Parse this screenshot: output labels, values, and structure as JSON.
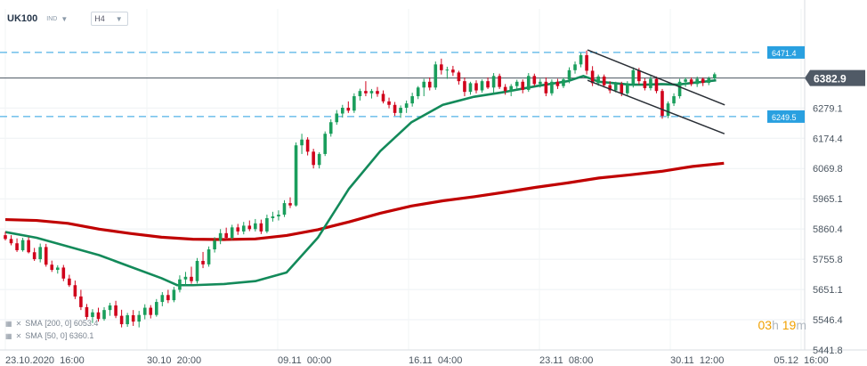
{
  "header": {
    "symbol": "UK100",
    "symbol_type": "IND",
    "timeframe": "H4"
  },
  "indicators": [
    {
      "name": "SMA",
      "params": "[200,  0]",
      "value": "6053.4"
    },
    {
      "name": "SMA",
      "params": "[50,  0]",
      "value": "6360.1"
    }
  ],
  "countdown": {
    "hours": "03",
    "h": "h",
    "minutes": "19",
    "m": "m"
  },
  "colors": {
    "up": "#1a9e5c",
    "down": "#d0021b",
    "sma200": "#c00000",
    "sma50": "#138a5a",
    "level": "#29a0e0",
    "current": "#4a5560",
    "channel": "#2a2f36"
  },
  "chart_data": {
    "type": "candlestick",
    "instrument": "UK100",
    "timeframe": "H4",
    "ylim": [
      5420,
      6510
    ],
    "y_ticks": [
      5441.8,
      5546.4,
      5651.1,
      5755.8,
      5860.4,
      5965.1,
      6069.8,
      6174.4,
      6279.1
    ],
    "x_ticks": [
      "23.10.2020  16:00",
      "30.10  20:00",
      "09.11  00:00",
      "16.11  04:00",
      "23.11  08:00",
      "30.11  12:00",
      "05.12  16:00"
    ],
    "current_price": {
      "value": 6382.9,
      "label": "6382.9"
    },
    "levels": [
      {
        "value": 6471.4,
        "label": "6471.4"
      },
      {
        "value": 6249.5,
        "label": "6249.5"
      }
    ],
    "channel": {
      "upper": [
        {
          "x": 37.27,
          "y": 6480
        },
        {
          "x": 46.05,
          "y": 6290
        }
      ],
      "lower": [
        {
          "x": 37.27,
          "y": 6375
        },
        {
          "x": 46.03,
          "y": 6190
        }
      ]
    },
    "sma200": [
      [
        0,
        5893
      ],
      [
        2,
        5890
      ],
      [
        4,
        5880
      ],
      [
        6,
        5860
      ],
      [
        8,
        5845
      ],
      [
        10,
        5832
      ],
      [
        12,
        5825
      ],
      [
        14,
        5824
      ],
      [
        16,
        5826
      ],
      [
        18,
        5838
      ],
      [
        20,
        5858
      ],
      [
        22,
        5885
      ],
      [
        24,
        5915
      ],
      [
        26,
        5940
      ],
      [
        28,
        5958
      ],
      [
        30,
        5972
      ],
      [
        32,
        5988
      ],
      [
        34,
        6005
      ],
      [
        36,
        6020
      ],
      [
        38,
        6037
      ],
      [
        40,
        6048
      ],
      [
        42,
        6060
      ],
      [
        44,
        6077
      ],
      [
        46,
        6088
      ]
    ],
    "sma50": [
      [
        0,
        5850
      ],
      [
        2,
        5830
      ],
      [
        4,
        5800
      ],
      [
        6,
        5770
      ],
      [
        8,
        5730
      ],
      [
        10,
        5690
      ],
      [
        11,
        5666
      ],
      [
        12,
        5666
      ],
      [
        14,
        5670
      ],
      [
        16,
        5680
      ],
      [
        18,
        5710
      ],
      [
        20,
        5830
      ],
      [
        22,
        6000
      ],
      [
        24,
        6130
      ],
      [
        26,
        6230
      ],
      [
        28,
        6290
      ],
      [
        30,
        6318
      ],
      [
        32,
        6335
      ],
      [
        34,
        6355
      ],
      [
        36,
        6372
      ],
      [
        37,
        6390
      ],
      [
        38,
        6370
      ],
      [
        39,
        6365
      ],
      [
        40,
        6360
      ],
      [
        41,
        6360
      ],
      [
        42,
        6362
      ],
      [
        43,
        6360
      ],
      [
        44,
        6366
      ],
      [
        45,
        6372
      ],
      [
        45.5,
        6375
      ]
    ],
    "candles_ohlc": [
      [
        5839,
        5851,
        5821,
        5826
      ],
      [
        5826,
        5839,
        5804,
        5811
      ],
      [
        5811,
        5828,
        5781,
        5787
      ],
      [
        5787,
        5830,
        5782,
        5822
      ],
      [
        5822,
        5832,
        5776,
        5780
      ],
      [
        5780,
        5795,
        5750,
        5756
      ],
      [
        5756,
        5810,
        5745,
        5798
      ],
      [
        5798,
        5809,
        5730,
        5737
      ],
      [
        5737,
        5751,
        5712,
        5719
      ],
      [
        5719,
        5735,
        5706,
        5727
      ],
      [
        5727,
        5736,
        5680,
        5689
      ],
      [
        5689,
        5702,
        5660,
        5666
      ],
      [
        5666,
        5682,
        5618,
        5627
      ],
      [
        5627,
        5650,
        5580,
        5590
      ],
      [
        5590,
        5601,
        5547,
        5556
      ],
      [
        5556,
        5583,
        5535,
        5572
      ],
      [
        5572,
        5588,
        5540,
        5549
      ],
      [
        5549,
        5590,
        5543,
        5580
      ],
      [
        5580,
        5605,
        5560,
        5596
      ],
      [
        5596,
        5612,
        5552,
        5560
      ],
      [
        5560,
        5581,
        5520,
        5531
      ],
      [
        5531,
        5570,
        5522,
        5562
      ],
      [
        5562,
        5580,
        5525,
        5540
      ],
      [
        5540,
        5577,
        5520,
        5563
      ],
      [
        5563,
        5600,
        5548,
        5588
      ],
      [
        5588,
        5597,
        5551,
        5563
      ],
      [
        5563,
        5618,
        5557,
        5608
      ],
      [
        5608,
        5642,
        5593,
        5632
      ],
      [
        5632,
        5650,
        5604,
        5614
      ],
      [
        5614,
        5660,
        5607,
        5650
      ],
      [
        5650,
        5700,
        5641,
        5686
      ],
      [
        5686,
        5712,
        5665,
        5695
      ],
      [
        5695,
        5730,
        5671,
        5680
      ],
      [
        5680,
        5760,
        5672,
        5750
      ],
      [
        5750,
        5781,
        5725,
        5738
      ],
      [
        5738,
        5800,
        5730,
        5790
      ],
      [
        5790,
        5832,
        5779,
        5820
      ],
      [
        5820,
        5860,
        5808,
        5846
      ],
      [
        5846,
        5865,
        5822,
        5830
      ],
      [
        5830,
        5875,
        5822,
        5866
      ],
      [
        5866,
        5878,
        5840,
        5852
      ],
      [
        5852,
        5885,
        5842,
        5872
      ],
      [
        5872,
        5890,
        5853,
        5860
      ],
      [
        5860,
        5895,
        5852,
        5880
      ],
      [
        5880,
        5893,
        5843,
        5852
      ],
      [
        5852,
        5910,
        5846,
        5898
      ],
      [
        5898,
        5920,
        5886,
        5904
      ],
      [
        5904,
        5925,
        5890,
        5910
      ],
      [
        5910,
        5960,
        5902,
        5950
      ],
      [
        5950,
        5970,
        5933,
        5942
      ],
      [
        5942,
        6160,
        5938,
        6150
      ],
      [
        6150,
        6190,
        6120,
        6170
      ],
      [
        6170,
        6178,
        6115,
        6128
      ],
      [
        6128,
        6138,
        6070,
        6082
      ],
      [
        6082,
        6126,
        6070,
        6120
      ],
      [
        6120,
        6198,
        6113,
        6190
      ],
      [
        6190,
        6240,
        6180,
        6230
      ],
      [
        6230,
        6272,
        6221,
        6260
      ],
      [
        6260,
        6290,
        6246,
        6280
      ],
      [
        6280,
        6302,
        6262,
        6270
      ],
      [
        6270,
        6330,
        6262,
        6320
      ],
      [
        6320,
        6346,
        6305,
        6338
      ],
      [
        6338,
        6372,
        6320,
        6330
      ],
      [
        6330,
        6345,
        6312,
        6338
      ],
      [
        6338,
        6352,
        6318,
        6328
      ],
      [
        6328,
        6340,
        6295,
        6302
      ],
      [
        6302,
        6315,
        6278,
        6290
      ],
      [
        6290,
        6300,
        6252,
        6262
      ],
      [
        6262,
        6288,
        6245,
        6280
      ],
      [
        6280,
        6305,
        6262,
        6295
      ],
      [
        6295,
        6332,
        6284,
        6320
      ],
      [
        6320,
        6355,
        6310,
        6350
      ],
      [
        6350,
        6380,
        6320,
        6370
      ],
      [
        6370,
        6385,
        6340,
        6350
      ],
      [
        6350,
        6440,
        6342,
        6430
      ],
      [
        6430,
        6450,
        6395,
        6410
      ],
      [
        6410,
        6422,
        6380,
        6412
      ],
      [
        6412,
        6425,
        6390,
        6402
      ],
      [
        6402,
        6408,
        6360,
        6372
      ],
      [
        6372,
        6385,
        6320,
        6335
      ],
      [
        6335,
        6370,
        6325,
        6365
      ],
      [
        6365,
        6375,
        6330,
        6340
      ],
      [
        6340,
        6378,
        6332,
        6372
      ],
      [
        6372,
        6385,
        6345,
        6350
      ],
      [
        6350,
        6400,
        6330,
        6390
      ],
      [
        6390,
        6398,
        6345,
        6352
      ],
      [
        6352,
        6362,
        6325,
        6338
      ],
      [
        6338,
        6362,
        6320,
        6355
      ],
      [
        6355,
        6377,
        6342,
        6370
      ],
      [
        6370,
        6378,
        6330,
        6342
      ],
      [
        6342,
        6400,
        6335,
        6390
      ],
      [
        6390,
        6398,
        6355,
        6362
      ],
      [
        6362,
        6380,
        6350,
        6370
      ],
      [
        6370,
        6385,
        6320,
        6330
      ],
      [
        6330,
        6378,
        6322,
        6370
      ],
      [
        6370,
        6380,
        6345,
        6355
      ],
      [
        6355,
        6385,
        6348,
        6378
      ],
      [
        6378,
        6420,
        6365,
        6410
      ],
      [
        6410,
        6440,
        6398,
        6430
      ],
      [
        6430,
        6470,
        6420,
        6462
      ],
      [
        6462,
        6478,
        6395,
        6408
      ],
      [
        6408,
        6424,
        6355,
        6365
      ],
      [
        6365,
        6395,
        6356,
        6388
      ],
      [
        6388,
        6395,
        6350,
        6358
      ],
      [
        6358,
        6372,
        6330,
        6340
      ],
      [
        6340,
        6370,
        6333,
        6362
      ],
      [
        6362,
        6370,
        6320,
        6330
      ],
      [
        6330,
        6372,
        6322,
        6362
      ],
      [
        6362,
        6420,
        6350,
        6410
      ],
      [
        6410,
        6418,
        6360,
        6372
      ],
      [
        6372,
        6382,
        6340,
        6348
      ],
      [
        6348,
        6390,
        6340,
        6380
      ],
      [
        6380,
        6388,
        6330,
        6338
      ],
      [
        6338,
        6345,
        6242,
        6252
      ],
      [
        6252,
        6302,
        6244,
        6295
      ],
      [
        6295,
        6330,
        6286,
        6320
      ],
      [
        6320,
        6380,
        6312,
        6370
      ],
      [
        6370,
        6385,
        6352,
        6378
      ],
      [
        6378,
        6385,
        6355,
        6362
      ],
      [
        6362,
        6388,
        6352,
        6380
      ],
      [
        6380,
        6385,
        6355,
        6366
      ],
      [
        6366,
        6388,
        6358,
        6382
      ],
      [
        6382,
        6402,
        6376,
        6396
      ]
    ]
  }
}
